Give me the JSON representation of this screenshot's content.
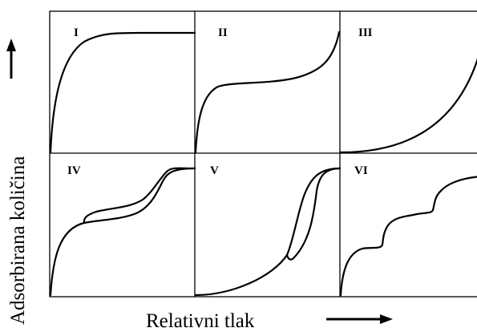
{
  "figure": {
    "ylabel": "Adsorbirana količina",
    "xlabel": "Relativni tlak",
    "panels": [
      {
        "label": "I"
      },
      {
        "label": "II"
      },
      {
        "label": "III"
      },
      {
        "label": "IV"
      },
      {
        "label": "V"
      },
      {
        "label": "VI"
      }
    ]
  }
}
